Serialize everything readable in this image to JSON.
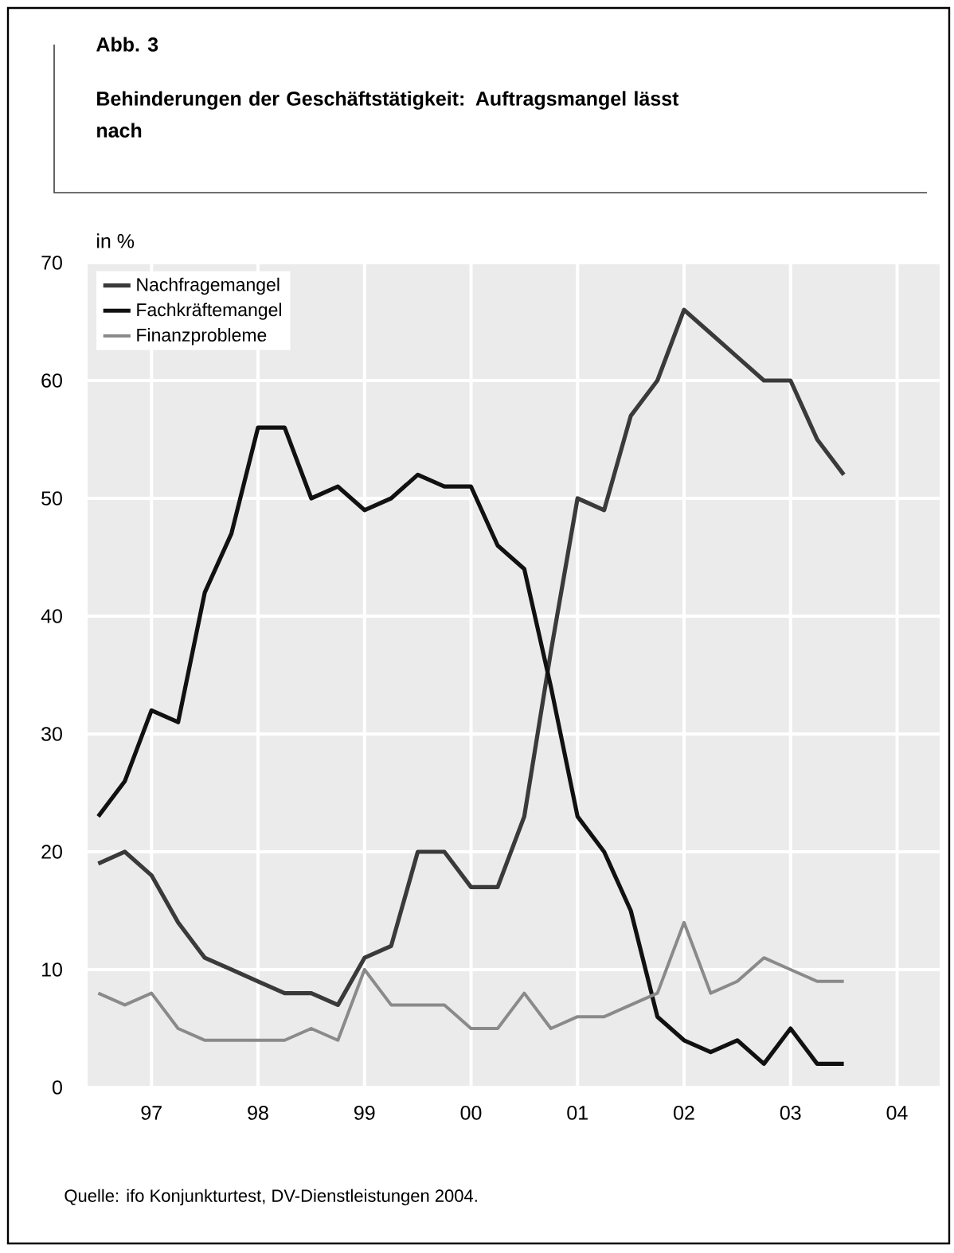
{
  "chart_data": {
    "type": "line",
    "title": "Behinderungen der Geschäftstätigkeit: Auftragsmangel lässt nach",
    "ylabel": "in %",
    "annotations": [
      "Abb. 3",
      "Quelle: ifo Konjunkturtest, DV-Dienstleistungen 2004."
    ],
    "x": [
      1996.5,
      1996.75,
      1997,
      1997.25,
      1997.5,
      1997.75,
      1998,
      1998.25,
      1998.5,
      1998.75,
      1999,
      1999.25,
      1999.5,
      1999.75,
      2000,
      2000.25,
      2000.5,
      2000.75,
      2001,
      2001.25,
      2001.5,
      2001.75,
      2002,
      2002.25,
      2002.5,
      2002.75,
      2003,
      2003.25,
      2003.5
    ],
    "series": [
      {
        "name": "Nachfragemangel",
        "color": "#3a3a3a",
        "values": [
          19,
          20,
          18,
          14,
          11,
          10,
          9,
          8,
          8,
          7,
          11,
          12,
          20,
          20,
          17,
          17,
          23,
          37,
          50,
          49,
          57,
          60,
          66,
          64,
          62,
          60,
          60,
          55,
          52
        ]
      },
      {
        "name": "Fachkräftemangel",
        "color": "#111111",
        "values": [
          23,
          26,
          32,
          31,
          42,
          47,
          56,
          56,
          50,
          51,
          49,
          50,
          52,
          51,
          51,
          46,
          44,
          34,
          23,
          20,
          15,
          6,
          4,
          3,
          4,
          2,
          5,
          2,
          2
        ]
      },
      {
        "name": "Finanzprobleme",
        "color": "#8a8a8a",
        "values": [
          8,
          7,
          8,
          5,
          4,
          4,
          4,
          4,
          5,
          4,
          10,
          7,
          7,
          7,
          5,
          5,
          8,
          5,
          6,
          6,
          7,
          8,
          14,
          8,
          9,
          11,
          10,
          9,
          9
        ]
      }
    ],
    "xlim": [
      1996.4,
      2004.4
    ],
    "ylim": [
      0,
      70
    ],
    "xticks": [
      {
        "value": 1997,
        "label": "97"
      },
      {
        "value": 1998,
        "label": "98"
      },
      {
        "value": 1999,
        "label": "99"
      },
      {
        "value": 2000,
        "label": "00"
      },
      {
        "value": 2001,
        "label": "01"
      },
      {
        "value": 2002,
        "label": "02"
      },
      {
        "value": 2003,
        "label": "03"
      },
      {
        "value": 2004,
        "label": "04"
      }
    ],
    "yticks": [
      0,
      10,
      20,
      30,
      40,
      50,
      60,
      70
    ],
    "grid": true,
    "legend": "top left",
    "marker": "none",
    "line_style": "solid"
  }
}
